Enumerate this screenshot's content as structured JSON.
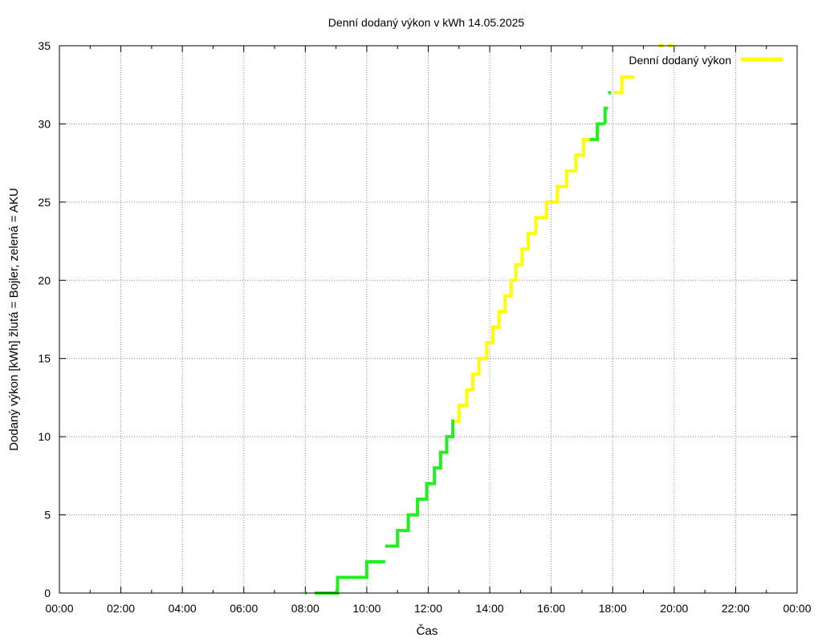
{
  "chart_data": {
    "type": "line",
    "title": "Denní dodaný výkon v kWh 14.05.2025",
    "xlabel": "Čas",
    "ylabel": "Dodaný výkon [kWh]  žlutá = Bojler, zelená = AKU",
    "xlim": [
      0,
      24
    ],
    "ylim": [
      0,
      35
    ],
    "x_ticks": [
      "00:00",
      "02:00",
      "04:00",
      "06:00",
      "08:00",
      "10:00",
      "12:00",
      "14:00",
      "16:00",
      "18:00",
      "20:00",
      "22:00",
      "00:00"
    ],
    "y_ticks": [
      "0",
      "5",
      "10",
      "15",
      "20",
      "25",
      "30",
      "35"
    ],
    "grid": true,
    "legend": {
      "placement": "top-right",
      "label": "Denní dodaný výkon",
      "color": "#ffff00"
    },
    "colors": {
      "aku": "#22ee22",
      "bojler": "#ffff00"
    },
    "segments": [
      {
        "series": "aku",
        "x": [
          8.0,
          8.05
        ],
        "y": [
          0,
          0
        ]
      },
      {
        "series": "aku",
        "x": [
          8.3,
          9.05,
          9.05,
          10.0,
          10.0,
          10.6
        ],
        "y": [
          0,
          0,
          1,
          1,
          2,
          2
        ]
      },
      {
        "series": "aku",
        "x": [
          10.6,
          11.0,
          11.0,
          11.35,
          11.35,
          11.65,
          11.65,
          11.95,
          11.95,
          12.2,
          12.2,
          12.4,
          12.4,
          12.6,
          12.6,
          12.8,
          12.8,
          12.85
        ],
        "y": [
          3,
          3,
          4,
          4,
          5,
          5,
          6,
          6,
          7,
          7,
          8,
          8,
          9,
          9,
          10,
          10,
          11,
          11
        ]
      },
      {
        "series": "bojler",
        "x": [
          12.85,
          13.0,
          13.0,
          13.25,
          13.25,
          13.45,
          13.45,
          13.65,
          13.65,
          13.9,
          13.9,
          14.1,
          14.1,
          14.3,
          14.3,
          14.5,
          14.5,
          14.7,
          14.7,
          14.85,
          14.85,
          15.05,
          15.05,
          15.25,
          15.25,
          15.5,
          15.5,
          15.85,
          15.85,
          16.2,
          16.2,
          16.5,
          16.5,
          16.8,
          16.8,
          17.05,
          17.05,
          17.25
        ],
        "y": [
          11,
          11,
          12,
          12,
          13,
          13,
          14,
          14,
          15,
          15,
          16,
          16,
          17,
          17,
          18,
          18,
          19,
          19,
          20,
          20,
          21,
          21,
          22,
          22,
          23,
          23,
          24,
          24,
          25,
          25,
          26,
          26,
          27,
          27,
          28,
          28,
          29,
          29
        ]
      },
      {
        "series": "aku",
        "x": [
          17.25,
          17.5,
          17.5,
          17.75
        ],
        "y": [
          29,
          29,
          30,
          30
        ]
      },
      {
        "series": "aku",
        "x": [
          17.75,
          17.75,
          17.85
        ],
        "y": [
          30,
          31,
          31
        ]
      },
      {
        "series": "aku",
        "x": [
          17.85,
          17.95
        ],
        "y": [
          32,
          32
        ]
      },
      {
        "series": "bojler",
        "x": [
          18.05,
          18.3,
          18.3,
          18.7
        ],
        "y": [
          32,
          32,
          33,
          33
        ]
      },
      {
        "series": "bojler",
        "x": [
          19.5,
          19.65
        ],
        "y": [
          35,
          35
        ]
      },
      {
        "series": "bojler",
        "x": [
          19.8,
          19.95
        ],
        "y": [
          35,
          35
        ]
      }
    ]
  }
}
